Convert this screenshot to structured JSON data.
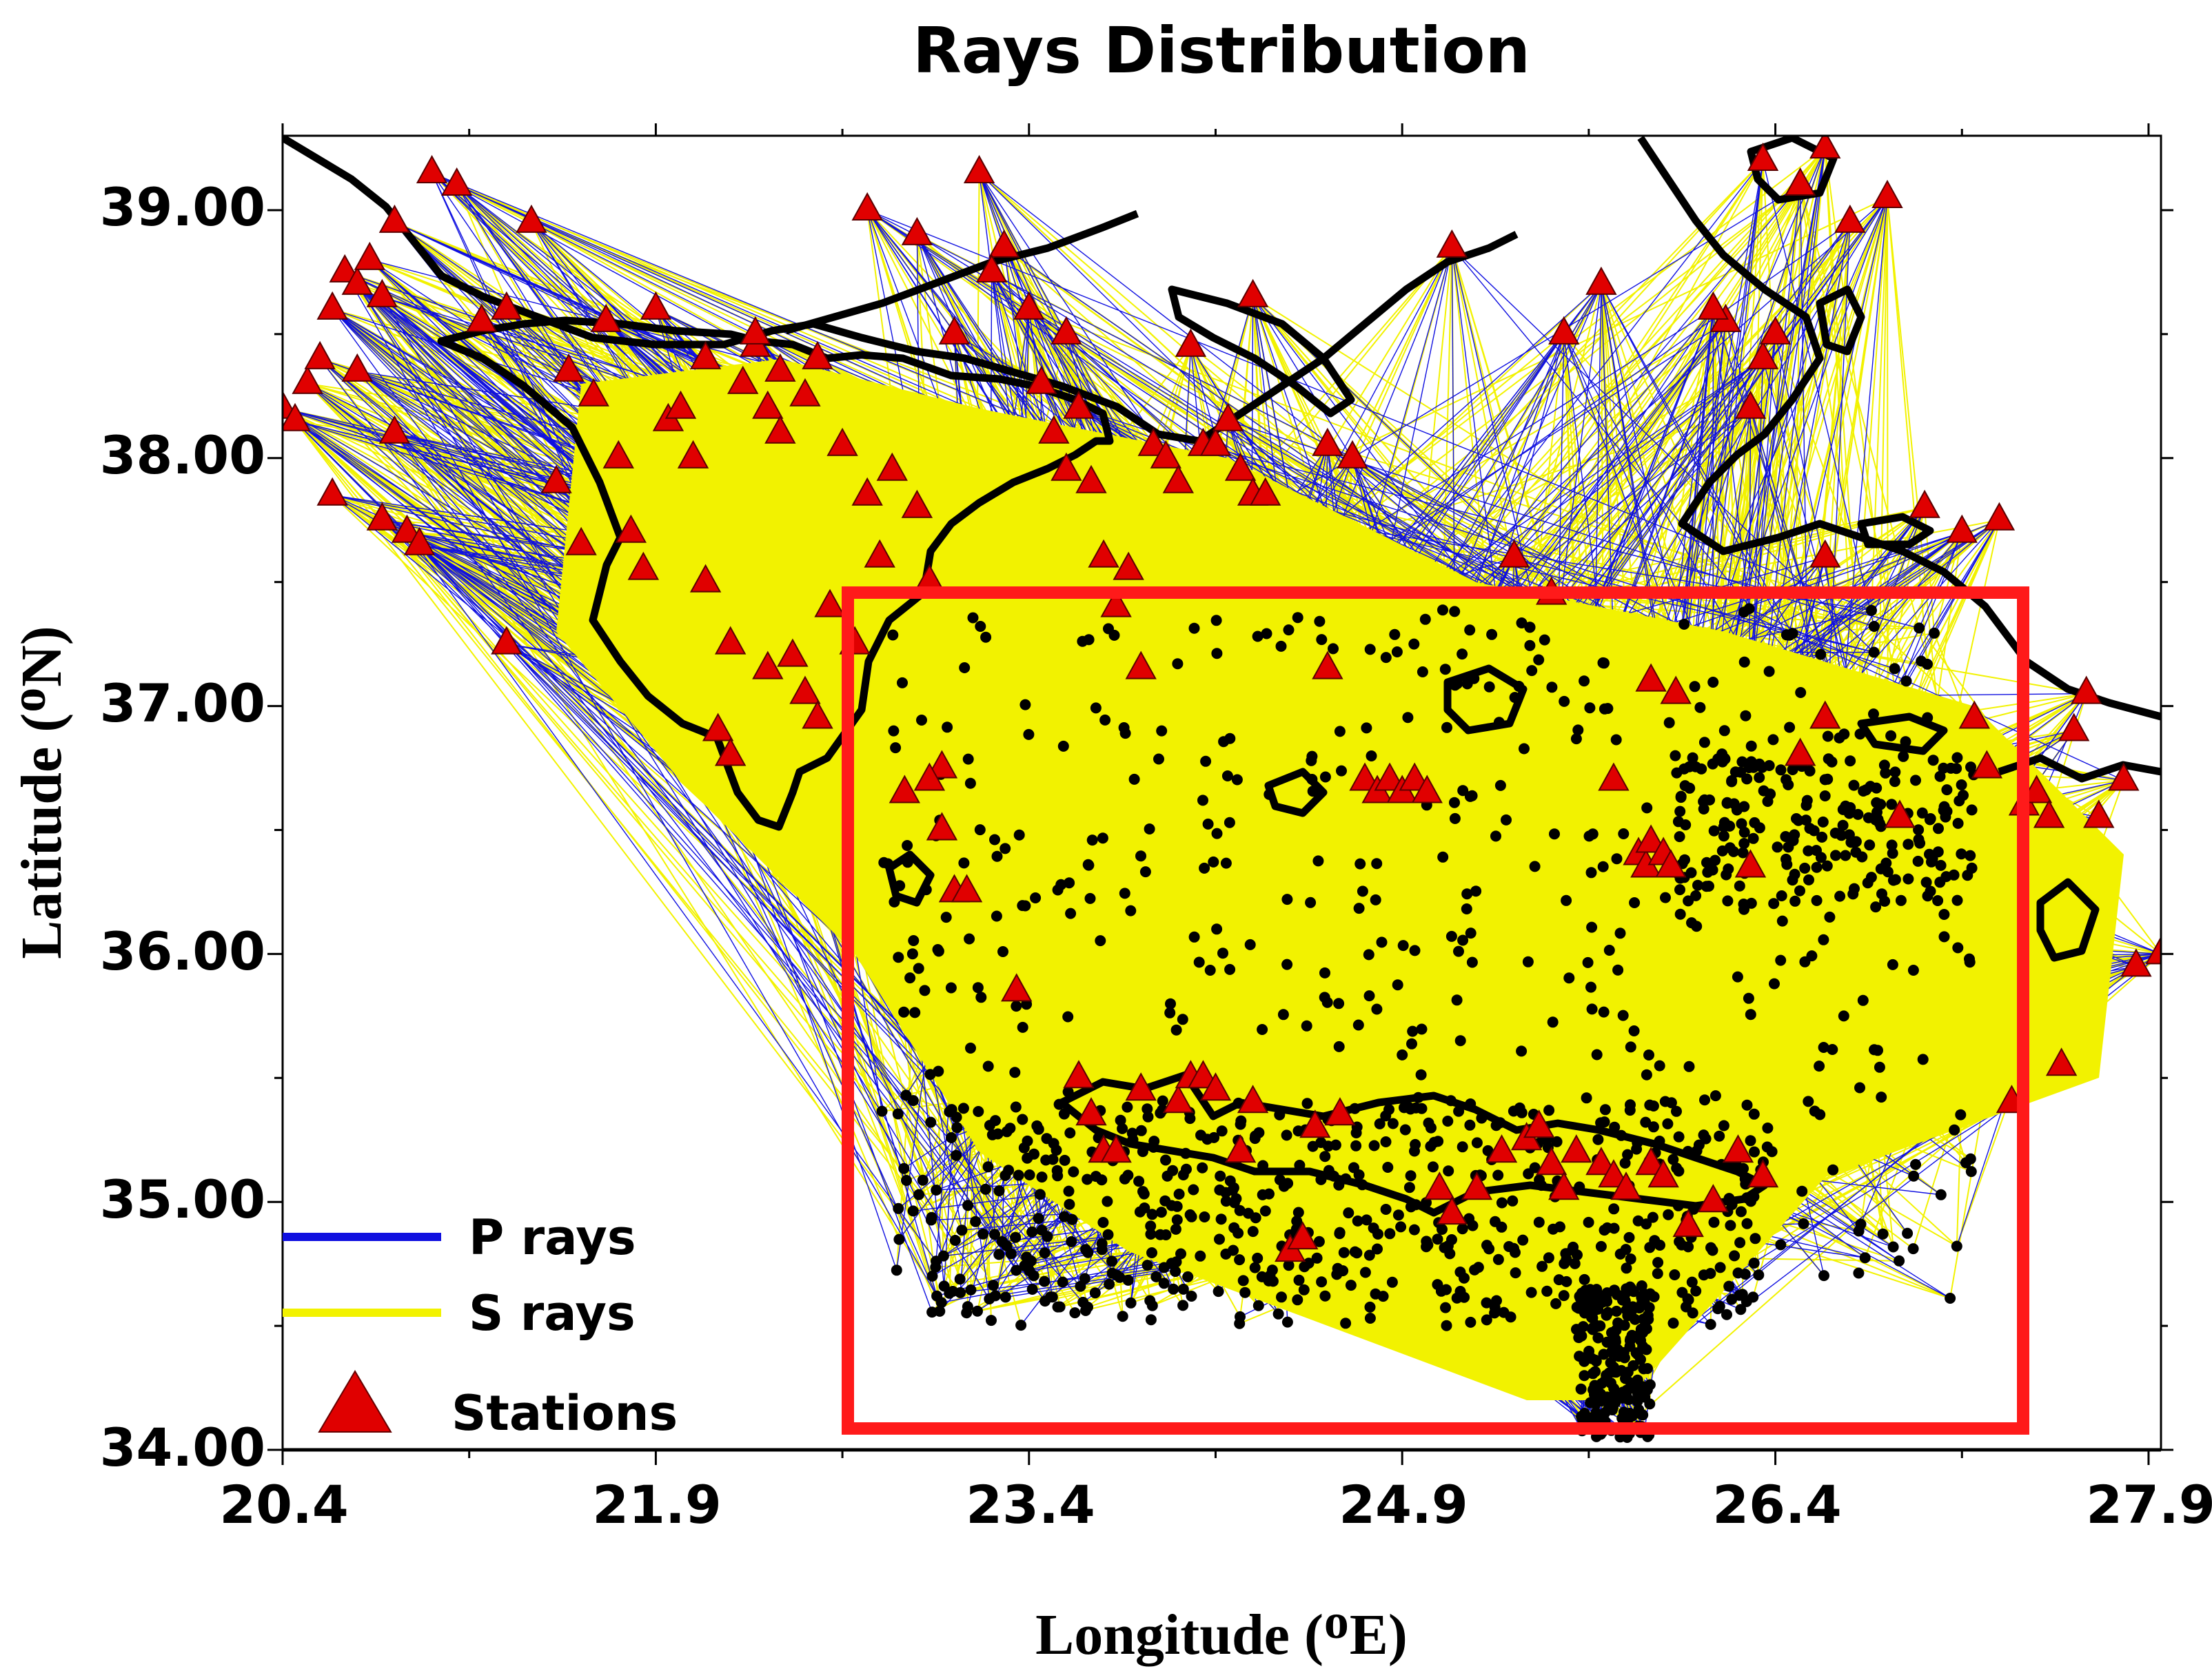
{
  "chart_data": {
    "type": "scatter",
    "title": "Rays Distribution",
    "xlabel": "Longitude (ᴼE)",
    "ylabel": "Latitude (ᴼN)",
    "xlim": [
      20.4,
      27.95
    ],
    "ylim": [
      34.0,
      39.3
    ],
    "x_ticks": [
      "20.4",
      "21.9",
      "23.4",
      "24.9",
      "26.4",
      "27.9"
    ],
    "y_ticks": [
      "39.00",
      "38.00",
      "37.00",
      "36.00",
      "35.00",
      "34.00"
    ],
    "legend": {
      "placement": "bottom-left",
      "entries": [
        "P rays",
        "S rays",
        "Stations"
      ]
    },
    "colors": {
      "p_rays": "#1010e0",
      "s_rays": "#f2f200",
      "stations": "#e00000",
      "events": "#000000",
      "coastline": "#000000",
      "study_box": "#ff0000"
    },
    "study_area": {
      "lon": [
        22.65,
        27.35
      ],
      "lat": [
        34.1,
        37.45
      ]
    },
    "stations": [
      [
        20.4,
        38.2
      ],
      [
        20.45,
        38.15
      ],
      [
        20.5,
        38.3
      ],
      [
        20.55,
        38.4
      ],
      [
        20.6,
        38.6
      ],
      [
        20.65,
        38.75
      ],
      [
        20.7,
        38.7
      ],
      [
        20.75,
        38.8
      ],
      [
        20.8,
        38.65
      ],
      [
        20.85,
        38.95
      ],
      [
        20.6,
        37.85
      ],
      [
        20.8,
        37.75
      ],
      [
        20.9,
        37.7
      ],
      [
        20.85,
        38.1
      ],
      [
        20.7,
        38.35
      ],
      [
        20.95,
        37.65
      ],
      [
        21.0,
        39.15
      ],
      [
        21.1,
        39.1
      ],
      [
        21.2,
        38.55
      ],
      [
        21.3,
        38.6
      ],
      [
        21.4,
        38.95
      ],
      [
        21.5,
        37.9
      ],
      [
        21.6,
        37.65
      ],
      [
        21.65,
        38.25
      ],
      [
        21.7,
        38.55
      ],
      [
        21.75,
        38.0
      ],
      [
        21.8,
        37.7
      ],
      [
        21.9,
        38.6
      ],
      [
        21.95,
        38.15
      ],
      [
        21.55,
        38.35
      ],
      [
        21.85,
        37.55
      ],
      [
        22.0,
        38.2
      ],
      [
        22.05,
        38.0
      ],
      [
        22.1,
        37.5
      ],
      [
        22.1,
        38.4
      ],
      [
        22.2,
        37.25
      ],
      [
        22.25,
        38.3
      ],
      [
        22.3,
        38.45
      ],
      [
        22.35,
        38.2
      ],
      [
        22.4,
        38.35
      ],
      [
        22.15,
        36.9
      ],
      [
        22.2,
        36.8
      ],
      [
        22.35,
        37.15
      ],
      [
        22.45,
        37.2
      ],
      [
        22.5,
        37.05
      ],
      [
        22.55,
        36.95
      ],
      [
        22.4,
        38.1
      ],
      [
        22.5,
        38.25
      ],
      [
        22.55,
        38.4
      ],
      [
        22.6,
        37.4
      ],
      [
        22.65,
        38.05
      ],
      [
        22.7,
        37.25
      ],
      [
        22.8,
        37.6
      ],
      [
        22.85,
        37.95
      ],
      [
        22.9,
        36.65
      ],
      [
        22.95,
        37.8
      ],
      [
        23.0,
        37.5
      ],
      [
        23.05,
        36.75
      ],
      [
        22.95,
        38.9
      ],
      [
        23.1,
        38.5
      ],
      [
        22.75,
        39.0
      ],
      [
        23.3,
        38.85
      ],
      [
        23.2,
        39.15
      ],
      [
        23.25,
        38.75
      ],
      [
        23.4,
        38.6
      ],
      [
        23.45,
        38.3
      ],
      [
        23.5,
        38.1
      ],
      [
        23.55,
        37.95
      ],
      [
        23.6,
        38.2
      ],
      [
        23.65,
        37.9
      ],
      [
        23.7,
        37.6
      ],
      [
        23.75,
        37.4
      ],
      [
        23.8,
        37.55
      ],
      [
        23.85,
        37.15
      ],
      [
        23.9,
        38.05
      ],
      [
        23.95,
        38.0
      ],
      [
        24.0,
        37.9
      ],
      [
        24.05,
        38.45
      ],
      [
        24.1,
        38.05
      ],
      [
        24.15,
        38.05
      ],
      [
        24.2,
        38.15
      ],
      [
        24.25,
        37.95
      ],
      [
        24.3,
        37.85
      ],
      [
        24.35,
        37.85
      ],
      [
        23.0,
        36.7
      ],
      [
        23.05,
        36.5
      ],
      [
        23.1,
        36.25
      ],
      [
        23.15,
        36.25
      ],
      [
        23.35,
        35.85
      ],
      [
        23.6,
        35.5
      ],
      [
        23.65,
        35.35
      ],
      [
        23.7,
        35.2
      ],
      [
        23.75,
        35.2
      ],
      [
        23.85,
        35.45
      ],
      [
        24.0,
        35.4
      ],
      [
        24.05,
        35.5
      ],
      [
        24.1,
        35.5
      ],
      [
        24.15,
        35.45
      ],
      [
        24.25,
        35.2
      ],
      [
        24.3,
        35.4
      ],
      [
        24.45,
        34.8
      ],
      [
        24.5,
        34.85
      ],
      [
        24.55,
        35.3
      ],
      [
        24.65,
        35.35
      ],
      [
        24.75,
        36.7
      ],
      [
        24.8,
        36.65
      ],
      [
        24.85,
        36.7
      ],
      [
        24.9,
        36.65
      ],
      [
        24.95,
        36.7
      ],
      [
        25.0,
        36.65
      ],
      [
        25.05,
        35.05
      ],
      [
        25.1,
        34.95
      ],
      [
        25.2,
        35.05
      ],
      [
        25.3,
        35.2
      ],
      [
        25.4,
        35.25
      ],
      [
        25.45,
        35.3
      ],
      [
        25.5,
        35.15
      ],
      [
        25.55,
        35.05
      ],
      [
        25.6,
        35.2
      ],
      [
        25.7,
        35.15
      ],
      [
        25.75,
        35.1
      ],
      [
        25.8,
        35.05
      ],
      [
        25.9,
        35.15
      ],
      [
        25.95,
        35.1
      ],
      [
        26.05,
        34.9
      ],
      [
        26.15,
        35.0
      ],
      [
        26.25,
        35.2
      ],
      [
        26.35,
        35.1
      ],
      [
        25.85,
        36.4
      ],
      [
        25.88,
        36.35
      ],
      [
        25.9,
        36.45
      ],
      [
        25.95,
        36.4
      ],
      [
        25.98,
        36.35
      ],
      [
        25.75,
        36.7
      ],
      [
        25.9,
        37.1
      ],
      [
        26.0,
        37.05
      ],
      [
        26.3,
        36.35
      ],
      [
        26.5,
        36.8
      ],
      [
        26.6,
        36.95
      ],
      [
        26.9,
        36.55
      ],
      [
        26.3,
        38.2
      ],
      [
        26.35,
        38.4
      ],
      [
        26.4,
        38.5
      ],
      [
        26.35,
        39.2
      ],
      [
        26.5,
        39.1
      ],
      [
        26.6,
        39.25
      ],
      [
        26.7,
        38.95
      ],
      [
        26.85,
        39.05
      ],
      [
        26.2,
        38.55
      ],
      [
        26.6,
        37.6
      ],
      [
        27.0,
        37.8
      ],
      [
        27.15,
        37.7
      ],
      [
        27.3,
        37.75
      ],
      [
        27.2,
        36.95
      ],
      [
        27.25,
        36.75
      ],
      [
        27.4,
        36.6
      ],
      [
        27.45,
        36.65
      ],
      [
        27.5,
        36.55
      ],
      [
        27.6,
        36.9
      ],
      [
        27.65,
        37.05
      ],
      [
        27.8,
        36.7
      ],
      [
        27.85,
        35.95
      ],
      [
        27.95,
        36.0
      ],
      [
        27.55,
        35.55
      ],
      [
        27.35,
        35.4
      ],
      [
        27.7,
        36.55
      ],
      [
        25.1,
        38.85
      ],
      [
        25.7,
        38.7
      ],
      [
        24.3,
        38.65
      ],
      [
        25.5,
        37.45
      ],
      [
        25.35,
        37.6
      ],
      [
        24.7,
        38.0
      ],
      [
        24.6,
        38.05
      ],
      [
        25.55,
        38.5
      ],
      [
        26.15,
        38.6
      ],
      [
        24.6,
        37.15
      ],
      [
        23.55,
        38.5
      ],
      [
        22.75,
        37.85
      ],
      [
        22.3,
        38.5
      ],
      [
        21.3,
        37.25
      ]
    ]
  }
}
